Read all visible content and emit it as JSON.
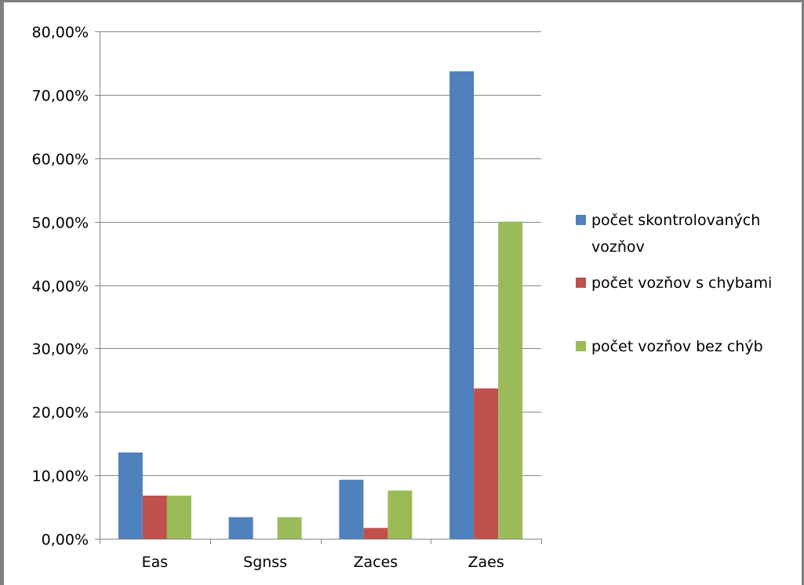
{
  "chart_data": {
    "type": "bar",
    "categories": [
      "Eas",
      "Sgnss",
      "Zaces",
      "Zaes"
    ],
    "series": [
      {
        "name": "počet skontrolovaných vozňov",
        "values": [
          13.6,
          3.4,
          9.3,
          73.7
        ],
        "color": "#4f81bd"
      },
      {
        "name": "počet vozňov s chybami",
        "values": [
          6.8,
          0.0,
          1.7,
          23.7
        ],
        "color": "#c0504d"
      },
      {
        "name": "počet vozňov bez chýb",
        "values": [
          6.8,
          3.4,
          7.6,
          50.0
        ],
        "color": "#9bbb59"
      }
    ],
    "y_ticks": [
      "0,00%",
      "10,00%",
      "20,00%",
      "30,00%",
      "40,00%",
      "50,00%",
      "60,00%",
      "70,00%",
      "80,00%"
    ],
    "ylim": [
      0,
      80
    ],
    "grid": true,
    "legend_position": "right",
    "legend_lines": [
      [
        "počet skontrolovaných",
        "vozňov"
      ],
      [
        "počet vozňov s chybami"
      ],
      [
        "počet vozňov bez chýb"
      ]
    ],
    "gridline_color": "#868686",
    "axis_color": "#868686"
  }
}
